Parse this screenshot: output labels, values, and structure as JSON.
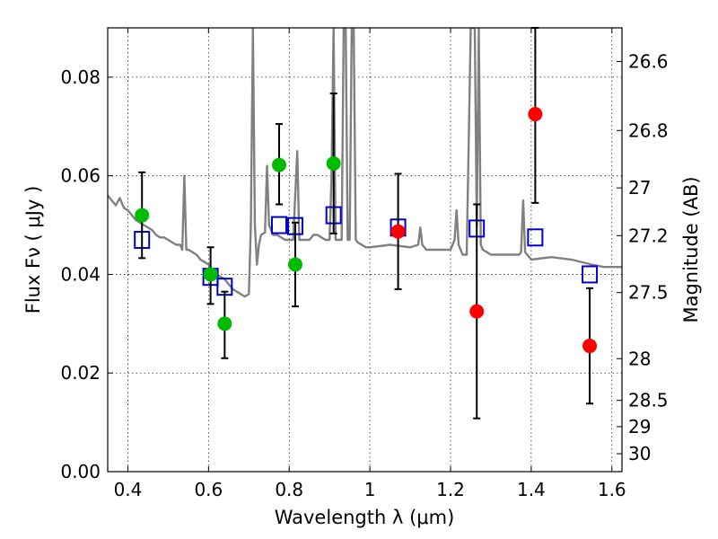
{
  "chart_data": {
    "type": "scatter",
    "xlabel": "Wavelength  λ (μm)",
    "ylabel": "Flux  Fν  ( μJy )",
    "ylabel_right": "Magnitude (AB)",
    "xlim": [
      0.35,
      1.625
    ],
    "ylim": [
      0.0,
      0.09
    ],
    "grid": true,
    "x_ticks": [
      0.4,
      0.6,
      0.8,
      1.0,
      1.2,
      1.4,
      1.6
    ],
    "x_tick_labels": [
      "0.4",
      "0.6",
      "0.8",
      "1",
      "1.2",
      "1.4",
      "1.6"
    ],
    "y_ticks": [
      0.0,
      0.02,
      0.04,
      0.06,
      0.08
    ],
    "y_tick_labels": [
      "0.00",
      "0.02",
      "0.04",
      "0.06",
      "0.08"
    ],
    "mag_ticks": [
      26.6,
      26.8,
      27.0,
      27.2,
      27.5,
      28.0,
      28.5,
      29.0,
      30.0
    ],
    "mag_tick_labels": [
      "26.6",
      "26.8",
      "27",
      "27.2",
      "27.5",
      "28",
      "28.5",
      "29",
      "30"
    ],
    "series": [
      {
        "name": "model_spectrum",
        "kind": "line",
        "color": "#808080",
        "x": [
          0.35,
          0.36,
          0.37,
          0.38,
          0.39,
          0.4,
          0.41,
          0.42,
          0.43,
          0.44,
          0.45,
          0.46,
          0.47,
          0.48,
          0.49,
          0.5,
          0.51,
          0.52,
          0.53,
          0.535,
          0.54,
          0.545,
          0.55,
          0.56,
          0.57,
          0.58,
          0.59,
          0.6,
          0.61,
          0.62,
          0.63,
          0.64,
          0.65,
          0.66,
          0.67,
          0.68,
          0.69,
          0.7,
          0.705,
          0.71,
          0.715,
          0.72,
          0.725,
          0.73,
          0.74,
          0.745,
          0.75,
          0.755,
          0.76,
          0.77,
          0.78,
          0.79,
          0.8,
          0.81,
          0.82,
          0.825,
          0.83,
          0.835,
          0.84,
          0.85,
          0.86,
          0.87,
          0.88,
          0.89,
          0.9,
          0.905,
          0.91,
          0.915,
          0.92,
          0.93,
          0.935,
          0.94,
          0.945,
          0.95,
          0.955,
          0.96,
          0.965,
          0.97,
          0.98,
          0.99,
          1.0,
          1.05,
          1.1,
          1.12,
          1.125,
          1.13,
          1.14,
          1.15,
          1.2,
          1.21,
          1.215,
          1.22,
          1.23,
          1.24,
          1.25,
          1.255,
          1.26,
          1.265,
          1.27,
          1.275,
          1.28,
          1.29,
          1.3,
          1.35,
          1.37,
          1.375,
          1.38,
          1.385,
          1.39,
          1.4,
          1.45,
          1.5,
          1.55,
          1.58,
          1.6,
          1.625
        ],
        "y": [
          0.056,
          0.055,
          0.054,
          0.0555,
          0.0535,
          0.053,
          0.052,
          0.051,
          0.0505,
          0.05,
          0.0495,
          0.049,
          0.048,
          0.0475,
          0.0475,
          0.047,
          0.0465,
          0.046,
          0.046,
          0.045,
          0.06,
          0.045,
          0.045,
          0.0445,
          0.044,
          0.043,
          0.0425,
          0.042,
          0.041,
          0.04,
          0.0395,
          0.039,
          0.038,
          0.037,
          0.0365,
          0.036,
          0.0355,
          0.036,
          0.05,
          0.09,
          0.05,
          0.042,
          0.046,
          0.048,
          0.0485,
          0.062,
          0.05,
          0.049,
          0.048,
          0.048,
          0.0475,
          0.047,
          0.047,
          0.047,
          0.065,
          0.047,
          0.047,
          0.047,
          0.047,
          0.047,
          0.048,
          0.048,
          0.0475,
          0.047,
          0.047,
          0.06,
          0.09,
          0.047,
          0.047,
          0.047,
          0.09,
          0.09,
          0.047,
          0.047,
          0.09,
          0.09,
          0.047,
          0.0465,
          0.046,
          0.0455,
          0.0455,
          0.046,
          0.0455,
          0.046,
          0.0495,
          0.046,
          0.045,
          0.045,
          0.045,
          0.047,
          0.053,
          0.046,
          0.044,
          0.044,
          0.09,
          0.09,
          0.09,
          0.05,
          0.09,
          0.046,
          0.045,
          0.0445,
          0.044,
          0.044,
          0.044,
          0.0445,
          0.055,
          0.0445,
          0.044,
          0.043,
          0.0435,
          0.043,
          0.042,
          0.0415,
          0.0415,
          0.0415
        ]
      },
      {
        "name": "model_photometry",
        "kind": "open_square",
        "color": "#0000cc",
        "x": [
          0.435,
          0.605,
          0.64,
          0.775,
          0.815,
          0.91,
          1.07,
          1.265,
          1.41,
          1.545
        ],
        "values": [
          0.047,
          0.0395,
          0.0375,
          0.05,
          0.0498,
          0.052,
          0.0495,
          0.0493,
          0.0475,
          0.04
        ]
      },
      {
        "name": "detections",
        "kind": "filled_circle",
        "color": "#00bb00",
        "x": [
          0.435,
          0.605,
          0.64,
          0.775,
          0.815,
          0.91
        ],
        "values": [
          0.052,
          0.04,
          0.03,
          0.0622,
          0.042,
          0.0625
        ],
        "err_low": [
          0.0087,
          0.006,
          0.007,
          0.008,
          0.0085,
          0.0142
        ],
        "err_high": [
          0.0087,
          0.0055,
          0.0065,
          0.0083,
          0.0085,
          0.0142
        ]
      },
      {
        "name": "upper_limits",
        "kind": "filled_circle",
        "color": "#ff0000",
        "x": [
          1.07,
          1.265,
          1.41,
          1.545
        ],
        "values": [
          0.0487,
          0.0325,
          0.0725,
          0.0255
        ],
        "err_low": [
          0.0117,
          0.0217,
          0.018,
          0.0117
        ],
        "err_high": [
          0.0117,
          0.0217,
          0.0175,
          0.0117
        ]
      }
    ]
  }
}
